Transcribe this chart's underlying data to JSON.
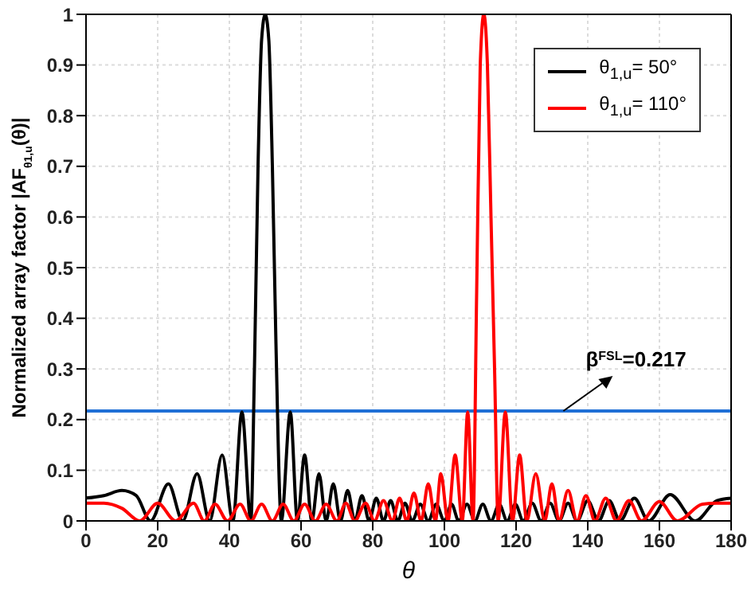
{
  "chart_data": {
    "type": "line",
    "xlabel": "θ",
    "ylabel": "Normalized array factor |AF$_{θ1,u}$(θ)|",
    "xlim": [
      0,
      180
    ],
    "xticks": [
      0,
      20,
      40,
      60,
      80,
      100,
      120,
      140,
      160,
      180
    ],
    "ylim": [
      0,
      1
    ],
    "yticks": [
      0,
      0.1,
      0.2,
      0.3,
      0.4,
      0.5,
      0.6,
      0.7,
      0.8,
      0.9,
      1
    ],
    "grid": true,
    "legend": "top right",
    "marker": "none",
    "line_style": "solid",
    "ref_lines": [
      {
        "axis": "y",
        "value": 0.217,
        "label": "β$^{FSL}$=0.217",
        "color": "#1f6fd6"
      }
    ],
    "series": [
      {
        "name": "θ$_{1,u}$= 50°",
        "color": "#000000",
        "x": [
          0,
          5,
          10,
          14,
          18,
          23,
          27,
          31,
          34.5,
          38,
          41,
          43.5,
          46,
          47,
          48,
          49,
          50,
          51,
          52,
          53,
          54.5,
          57,
          59,
          61,
          63,
          65,
          67,
          69,
          71,
          73,
          75,
          77,
          79,
          81,
          83,
          85,
          87,
          89,
          91,
          93.3,
          95.5,
          97.7,
          100,
          102,
          104,
          106.3,
          108.5,
          110.7,
          113,
          115.3,
          117.5,
          119.8,
          122,
          124.5,
          127,
          129.5,
          132,
          134.5,
          137,
          140,
          143,
          146,
          149,
          153,
          157,
          163,
          170,
          176,
          180
        ],
        "values": [
          0.045,
          0.05,
          0.06,
          0.05,
          0,
          0.073,
          0,
          0.093,
          0,
          0.13,
          0,
          0.215,
          0,
          0.3,
          0.7,
          0.95,
          1,
          0.95,
          0.7,
          0.35,
          0,
          0.215,
          0,
          0.13,
          0,
          0.093,
          0,
          0.073,
          0,
          0.06,
          0,
          0.05,
          0,
          0.045,
          0,
          0.04,
          0,
          0.035,
          0,
          0.033,
          0,
          0.033,
          0,
          0.033,
          0,
          0.033,
          0,
          0.033,
          0,
          0.033,
          0,
          0.033,
          0,
          0.035,
          0,
          0.035,
          0,
          0.035,
          0,
          0.04,
          0,
          0.04,
          0,
          0.045,
          0,
          0.052,
          0,
          0.04,
          0.045
        ]
      },
      {
        "name": "θ$_{1,u}$= 110°",
        "color": "#ff0000",
        "x": [
          0,
          5,
          10,
          15,
          20,
          25,
          30,
          33,
          36,
          39.5,
          43,
          46,
          49,
          52,
          55,
          58,
          61,
          64,
          67,
          70,
          72.5,
          75,
          78,
          80.5,
          83,
          85.5,
          87.5,
          89.5,
          91.5,
          93.5,
          95.5,
          97.5,
          99,
          101,
          103,
          105,
          106.5,
          108,
          109,
          110,
          111,
          112,
          113,
          114,
          115,
          117,
          119,
          121,
          123,
          125.5,
          128,
          130,
          132,
          134.5,
          137,
          139.5,
          142,
          145,
          148,
          151.5,
          155,
          160,
          165,
          172,
          176,
          180
        ],
        "values": [
          0.035,
          0.035,
          0.025,
          0,
          0.035,
          0,
          0.035,
          0,
          0.033,
          0,
          0.033,
          0,
          0.033,
          0,
          0.033,
          0,
          0.033,
          0,
          0.033,
          0,
          0.035,
          0,
          0.035,
          0,
          0.04,
          0,
          0.045,
          0,
          0.055,
          0,
          0.073,
          0,
          0.093,
          0,
          0.13,
          0,
          0.215,
          0,
          0.45,
          0.9,
          1,
          0.9,
          0.6,
          0.3,
          0,
          0.215,
          0,
          0.13,
          0,
          0.093,
          0,
          0.073,
          0,
          0.06,
          0,
          0.05,
          0,
          0.045,
          0,
          0.04,
          0,
          0.038,
          0,
          0.033,
          0.035,
          0.035
        ]
      }
    ]
  }
}
